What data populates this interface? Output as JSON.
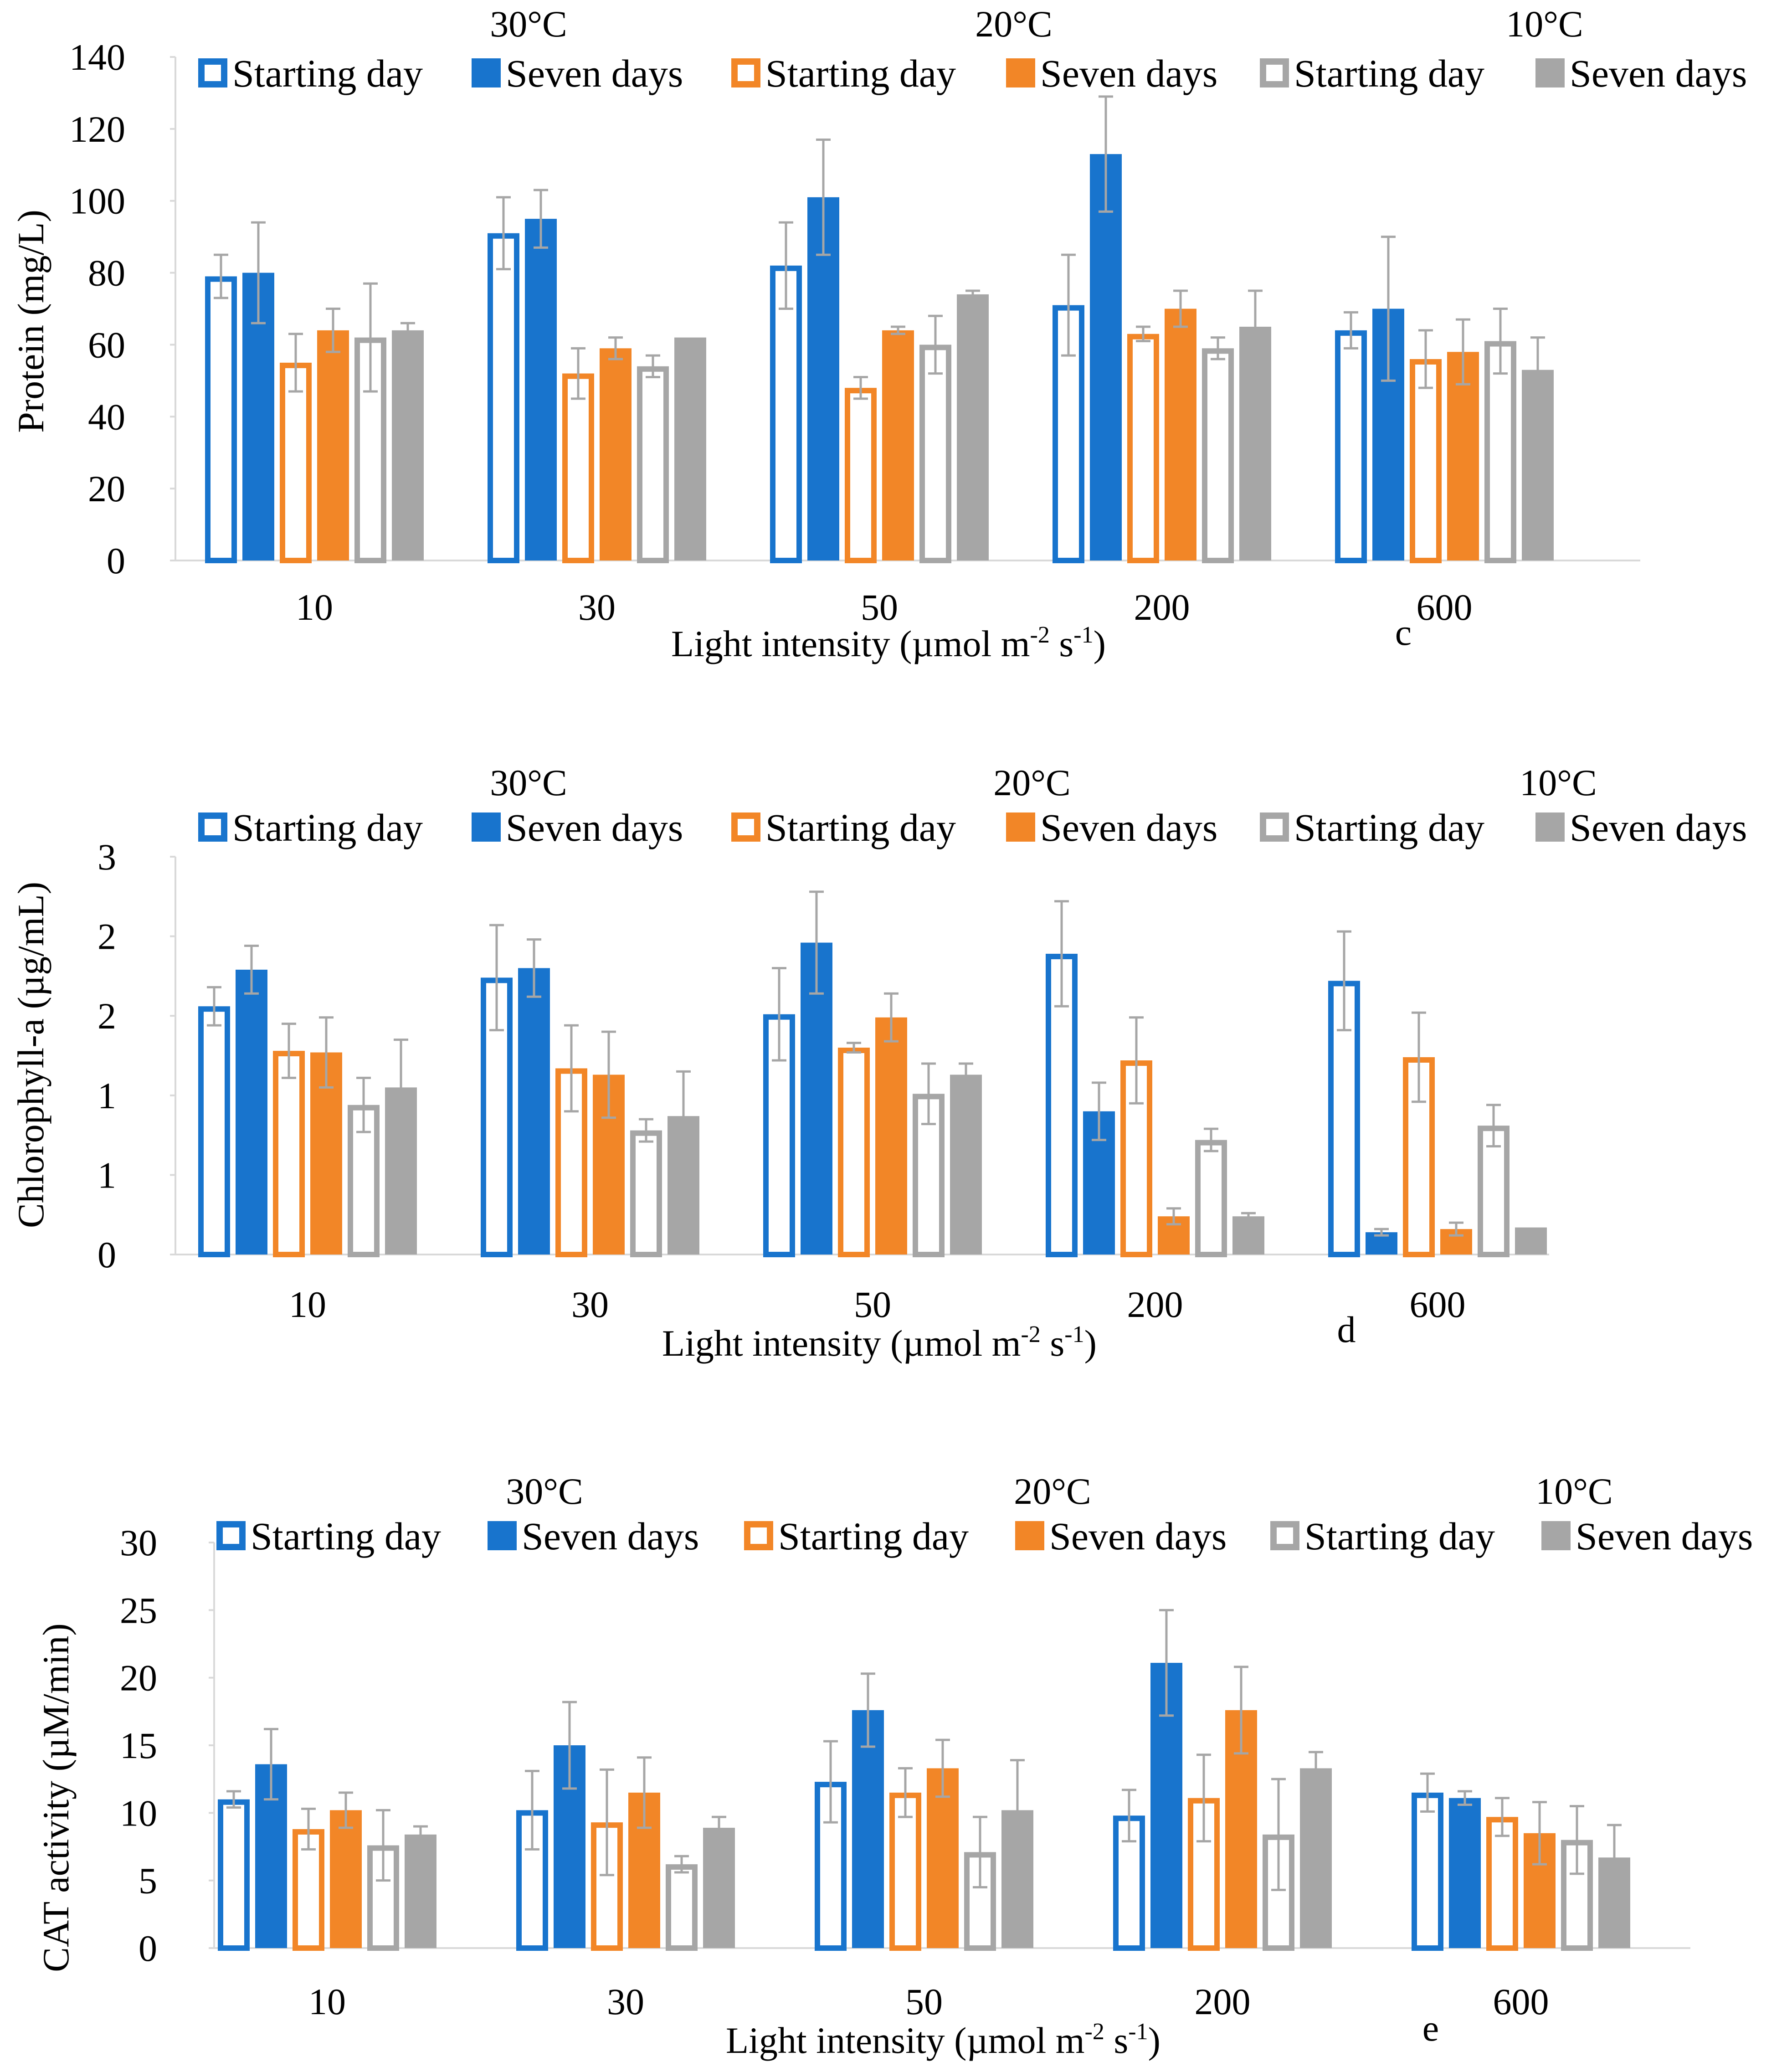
{
  "legend_labels": [
    "Starting day",
    "Seven days"
  ],
  "colors": {
    "blue": "#1874CD",
    "orange": "#F28627",
    "gray": "#A6A6A6",
    "axis": "#D9D9D9",
    "error_bar": "#A6A6A6"
  },
  "chart_data": [
    {
      "type": "bar",
      "panel_label": "c",
      "xlabel_main": "Light intensity (µmol m",
      "xlabel_sup1": "-2",
      "xlabel_mid": " s",
      "xlabel_sup2": "-1",
      "xlabel_end": ")",
      "ylabel": "Protein (mg/L)",
      "ylim": [
        0,
        140
      ],
      "yticks": [
        "0",
        "20",
        "40",
        "60",
        "80",
        "100",
        "120",
        "140"
      ],
      "categories": [
        "10",
        "30",
        "50",
        "200",
        "600"
      ],
      "temperatures": [
        "30°C",
        "20°C",
        "10°C"
      ],
      "series": [
        {
          "name": "Starting day",
          "temperature": "30°C",
          "color": "blue",
          "filled": false,
          "values": [
            79,
            91,
            82,
            71,
            64
          ],
          "errors": [
            6,
            10,
            12,
            14,
            5
          ]
        },
        {
          "name": "Seven days",
          "temperature": "30°C",
          "color": "blue",
          "filled": true,
          "values": [
            80,
            95,
            101,
            113,
            70
          ],
          "errors": [
            14,
            8,
            16,
            16,
            20
          ]
        },
        {
          "name": "Starting day",
          "temperature": "20°C",
          "color": "orange",
          "filled": false,
          "values": [
            55,
            52,
            48,
            63,
            56
          ],
          "errors": [
            8,
            7,
            3,
            2,
            8
          ]
        },
        {
          "name": "Seven days",
          "temperature": "20°C",
          "color": "orange",
          "filled": true,
          "values": [
            64,
            59,
            64,
            70,
            58
          ],
          "errors": [
            6,
            3,
            1,
            5,
            9
          ]
        },
        {
          "name": "Starting day",
          "temperature": "10°C",
          "color": "gray",
          "filled": false,
          "values": [
            62,
            54,
            60,
            59,
            61
          ],
          "errors": [
            15,
            3,
            8,
            3,
            9
          ]
        },
        {
          "name": "Seven days",
          "temperature": "10°C",
          "color": "gray",
          "filled": true,
          "values": [
            64,
            62,
            74,
            65,
            53
          ],
          "errors": [
            2,
            0,
            1,
            10,
            9
          ]
        }
      ]
    },
    {
      "type": "bar",
      "panel_label": "d",
      "xlabel_main": "Light intensity (µmol m",
      "xlabel_sup1": "-2",
      "xlabel_mid": " s",
      "xlabel_sup2": "-1",
      "xlabel_end": ")",
      "ylabel": "Chlorophyll-a (µg/mL)",
      "ylim": [
        0,
        2.5
      ],
      "yticks": [
        "0",
        "1",
        "1",
        "2",
        "2",
        "3"
      ],
      "categories": [
        "10",
        "30",
        "50",
        "200",
        "600"
      ],
      "temperatures": [
        "30°C",
        "20°C",
        "10°C"
      ],
      "series": [
        {
          "name": "Starting day",
          "temperature": "30°C",
          "color": "blue",
          "filled": false,
          "values": [
            1.56,
            1.74,
            1.51,
            1.89,
            1.72
          ],
          "errors": [
            0.12,
            0.33,
            0.29,
            0.33,
            0.31
          ]
        },
        {
          "name": "Seven days",
          "temperature": "30°C",
          "color": "blue",
          "filled": true,
          "values": [
            1.79,
            1.8,
            1.96,
            0.9,
            0.14
          ],
          "errors": [
            0.15,
            0.18,
            0.32,
            0.18,
            0.02
          ]
        },
        {
          "name": "Starting day",
          "temperature": "20°C",
          "color": "orange",
          "filled": false,
          "values": [
            1.28,
            1.17,
            1.3,
            1.22,
            1.24
          ],
          "errors": [
            0.17,
            0.27,
            0.03,
            0.27,
            0.28
          ]
        },
        {
          "name": "Seven days",
          "temperature": "20°C",
          "color": "orange",
          "filled": true,
          "values": [
            1.27,
            1.13,
            1.49,
            0.24,
            0.16
          ],
          "errors": [
            0.22,
            0.27,
            0.15,
            0.05,
            0.04
          ]
        },
        {
          "name": "Starting day",
          "temperature": "10°C",
          "color": "gray",
          "filled": false,
          "values": [
            0.94,
            0.78,
            1.01,
            0.72,
            0.81
          ],
          "errors": [
            0.17,
            0.07,
            0.19,
            0.07,
            0.13
          ]
        },
        {
          "name": "Seven days",
          "temperature": "10°C",
          "color": "gray",
          "filled": true,
          "values": [
            1.05,
            0.87,
            1.13,
            0.24,
            0.17
          ],
          "errors": [
            0.3,
            0.28,
            0.07,
            0.02,
            0.0
          ]
        }
      ]
    },
    {
      "type": "bar",
      "panel_label": "e",
      "xlabel_main": "Light intensity (µmol m",
      "xlabel_sup1": "-2",
      "xlabel_mid": " s",
      "xlabel_sup2": "-1",
      "xlabel_end": ")",
      "ylabel": "CAT activity (µM/min)",
      "ylim": [
        0,
        30
      ],
      "yticks": [
        "0",
        "5",
        "10",
        "15",
        "20",
        "25",
        "30"
      ],
      "categories": [
        "10",
        "30",
        "50",
        "200",
        "600"
      ],
      "temperatures": [
        "30°C",
        "20°C",
        "10°C"
      ],
      "series": [
        {
          "name": "Starting day",
          "temperature": "30°C",
          "color": "blue",
          "filled": false,
          "values": [
            11,
            10.2,
            12.3,
            9.8,
            11.5
          ],
          "errors": [
            0.6,
            2.9,
            3.0,
            1.9,
            1.4
          ]
        },
        {
          "name": "Seven days",
          "temperature": "30°C",
          "color": "blue",
          "filled": true,
          "values": [
            13.6,
            15.0,
            17.6,
            21.1,
            11.1
          ],
          "errors": [
            2.6,
            3.2,
            2.7,
            3.9,
            0.5
          ]
        },
        {
          "name": "Starting day",
          "temperature": "20°C",
          "color": "orange",
          "filled": false,
          "values": [
            8.8,
            9.3,
            11.5,
            11.1,
            9.7
          ],
          "errors": [
            1.5,
            3.9,
            1.8,
            3.2,
            1.4
          ]
        },
        {
          "name": "Seven days",
          "temperature": "20°C",
          "color": "orange",
          "filled": true,
          "values": [
            10.2,
            11.5,
            13.3,
            17.6,
            8.5
          ],
          "errors": [
            1.3,
            2.6,
            2.1,
            3.2,
            2.3
          ]
        },
        {
          "name": "Starting day",
          "temperature": "10°C",
          "color": "gray",
          "filled": false,
          "values": [
            7.6,
            6.2,
            7.1,
            8.4,
            8.0
          ],
          "errors": [
            2.6,
            0.6,
            2.6,
            4.1,
            2.5
          ]
        },
        {
          "name": "Seven days",
          "temperature": "10°C",
          "color": "gray",
          "filled": true,
          "values": [
            8.4,
            8.9,
            10.2,
            13.3,
            6.7
          ],
          "errors": [
            0.6,
            0.8,
            3.7,
            1.2,
            2.4
          ]
        }
      ]
    }
  ]
}
